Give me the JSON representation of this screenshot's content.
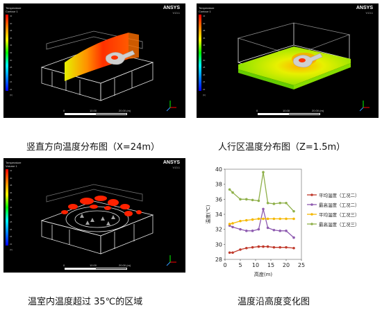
{
  "brand": "ANSYS",
  "brand_version": "V13.1",
  "panels": {
    "p1": {
      "legend_title": "Temperature\nContour 1",
      "ticks": [
        "42",
        "40",
        "38",
        "36",
        "34",
        "32",
        "30",
        "28",
        "26",
        "24",
        "22"
      ],
      "unit": "[C]",
      "scale_labels": [
        "0",
        "10.00",
        "20.00 (m)"
      ]
    },
    "p2": {
      "legend_title": "Temperature\nContour 1",
      "ticks": [
        "42",
        "40",
        "38",
        "36",
        "34",
        "32",
        "30",
        "28",
        "26",
        "24",
        "22"
      ],
      "unit": "[C]",
      "scale_labels": [
        "0",
        "10.00",
        "20.00 (m)"
      ]
    },
    "p3": {
      "legend_title": "Temperature\nVolume 1",
      "ticks": [
        "42",
        "40",
        "38",
        "36",
        "34",
        "32",
        "30",
        "28",
        "26",
        "24",
        "22"
      ],
      "unit": "[C]",
      "scale_labels": [
        "0",
        "10.00",
        "20.00 (m)"
      ]
    }
  },
  "captions": {
    "c1": "竖直方向温度分布图（X=24m）",
    "c2": "人行区温度分布图（Z=1.5m）",
    "c3": "温室内温度超过 35℃的区域",
    "c4": "温度沿高度变化图"
  },
  "chart_data": {
    "type": "line",
    "title": "",
    "xlabel": "高度(m)",
    "ylabel": "温度(℃)",
    "xlim": [
      0,
      25
    ],
    "ylim": [
      28,
      40
    ],
    "xticks": [
      0,
      5,
      10,
      15,
      20,
      25
    ],
    "yticks": [
      28,
      30,
      32,
      34,
      36,
      38,
      40
    ],
    "legend": "right",
    "series": [
      {
        "name": "平均温度（工况二）",
        "color": "#c0392b",
        "x": [
          1.5,
          2.5,
          5,
          7,
          9,
          11,
          12.5,
          14,
          16,
          18,
          20,
          22.5
        ],
        "y": [
          28.9,
          28.9,
          29.3,
          29.5,
          29.6,
          29.7,
          29.7,
          29.7,
          29.6,
          29.6,
          29.6,
          29.5
        ]
      },
      {
        "name": "最高温度（工况二）",
        "color": "#8e5bb0",
        "x": [
          1.5,
          2.5,
          5,
          7,
          9,
          11,
          12.5,
          14,
          16,
          18,
          20,
          22.5
        ],
        "y": [
          32.5,
          32.3,
          32.0,
          31.8,
          31.8,
          32.0,
          34.7,
          32.2,
          31.9,
          31.8,
          31.8,
          30.9
        ]
      },
      {
        "name": "平均温度（工况三）",
        "color": "#f5b800",
        "x": [
          1.5,
          2.5,
          5,
          7,
          9,
          11,
          12.5,
          14,
          16,
          18,
          20,
          22.5
        ],
        "y": [
          32.7,
          32.8,
          33.1,
          33.2,
          33.3,
          33.4,
          33.4,
          33.4,
          33.4,
          33.4,
          33.4,
          33.4
        ]
      },
      {
        "name": "最高温度（工况三）",
        "color": "#8fb04a",
        "x": [
          1.5,
          2.5,
          5,
          7,
          9,
          11,
          12.5,
          14,
          16,
          18,
          20,
          22.5
        ],
        "y": [
          37.3,
          36.9,
          36.0,
          36.0,
          35.9,
          35.8,
          39.6,
          35.5,
          35.4,
          35.5,
          35.5,
          34.4
        ]
      }
    ]
  }
}
